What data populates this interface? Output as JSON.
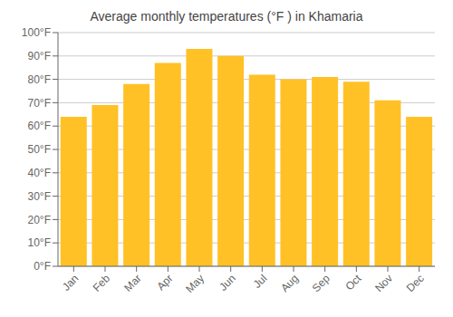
{
  "chart_data": {
    "type": "bar",
    "title": "Average monthly temperatures (°F ) in Khamaria",
    "categories": [
      "Jan",
      "Feb",
      "Mar",
      "Apr",
      "May",
      "Jun",
      "Jul",
      "Aug",
      "Sep",
      "Oct",
      "Nov",
      "Dec"
    ],
    "values": [
      64,
      69,
      78,
      87,
      93,
      90,
      82,
      80,
      81,
      79,
      71,
      64
    ],
    "color": "#FFC125",
    "ylim": [
      0,
      100
    ],
    "yticks": [
      {
        "value": 0,
        "label": "0°F"
      },
      {
        "value": 10,
        "label": "10°F"
      },
      {
        "value": 20,
        "label": "20°F"
      },
      {
        "value": 30,
        "label": "30°F"
      },
      {
        "value": 40,
        "label": "40°F"
      },
      {
        "value": 50,
        "label": "50°F"
      },
      {
        "value": 60,
        "label": "60°F"
      },
      {
        "value": 70,
        "label": "70°F"
      },
      {
        "value": 80,
        "label": "80°F"
      },
      {
        "value": 90,
        "label": "90°F"
      },
      {
        "value": 100,
        "label": "100°F"
      }
    ],
    "grid": true
  }
}
